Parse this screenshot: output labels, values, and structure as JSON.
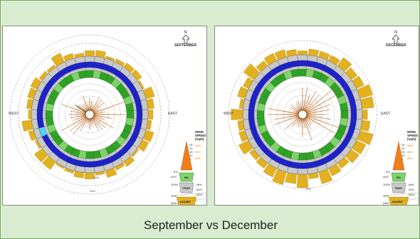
{
  "caption": "September vs December",
  "panels": [
    {
      "month": "SEPTEMBER",
      "north": "N",
      "west": "WEST",
      "east": "EAST",
      "pct_inner": "15%",
      "pct_outer": "25%",
      "highlight_color": "#4fd8ff"
    },
    {
      "month": "DECEMBER",
      "north": "N",
      "west": "WEST",
      "east": "EAST",
      "pct_inner": "15%",
      "pct_outer": "25%",
      "highlight_color": "#ffffff"
    }
  ],
  "legend": {
    "title_line1": "WIND",
    "title_line2": "SPEED",
    "title_line3": "(mph)",
    "speeds": [
      "25",
      "20",
      "15",
      "10",
      "5"
    ],
    "mph_labels": [
      "MAX",
      "AVG",
      "MIN"
    ],
    "pct_5": "5%",
    "avg": "AVG",
    "rh": "RH",
    "pct_100": "100%",
    "min": "MIN",
    "temp": "TEMP",
    "temp_avg": "AVG",
    "max": "MAX",
    "pct_10": "10%",
    "pct_20": "20%",
    "hours": "HOURS"
  },
  "colors": {
    "hours_bars": "#e3b020",
    "wind_orange": "#f07e1a",
    "rh_green": "#2ea324",
    "rh_green_light": "#7fd36a",
    "temp_blue": "#1e23c9",
    "ring_gray": "#c9c9c9",
    "slide_bg": "#d9ecd0"
  }
}
